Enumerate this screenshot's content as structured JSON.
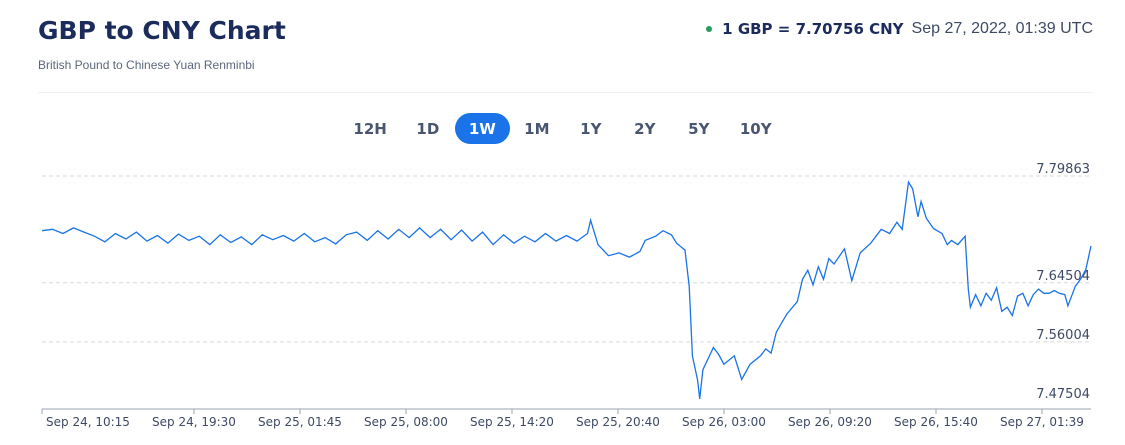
{
  "header": {
    "title": "GBP to CNY Chart",
    "subtitle": "British Pound to Chinese Yuan Renminbi",
    "rate": "1 GBP = 7.70756 CNY",
    "timestamp": "Sep 27, 2022, 01:39 UTC",
    "status_color": "#21a05a"
  },
  "tabs": [
    {
      "label": "12H",
      "active": false
    },
    {
      "label": "1D",
      "active": false
    },
    {
      "label": "1W",
      "active": true
    },
    {
      "label": "1M",
      "active": false
    },
    {
      "label": "1Y",
      "active": false
    },
    {
      "label": "2Y",
      "active": false
    },
    {
      "label": "5Y",
      "active": false
    },
    {
      "label": "10Y",
      "active": false
    }
  ],
  "chart_data": {
    "type": "line",
    "title": "",
    "xlabel": "",
    "ylabel": "",
    "line_color": "#1a73e8",
    "y_ticks": [
      7.79863,
      7.64504,
      7.56004,
      7.47504
    ],
    "ylim": [
      7.47504,
      7.79863
    ],
    "x_tick_labels": [
      "Sep 24, 10:15",
      "Sep 24, 19:30",
      "Sep 25, 01:45",
      "Sep 25, 08:00",
      "Sep 25, 14:20",
      "Sep 25, 20:40",
      "Sep 26, 03:00",
      "Sep 26, 09:20",
      "Sep 26, 15:40",
      "Sep 27, 01:39"
    ],
    "series": [
      {
        "points": [
          [
            0.0,
            7.72
          ],
          [
            0.01,
            7.722
          ],
          [
            0.02,
            7.716
          ],
          [
            0.03,
            7.724
          ],
          [
            0.04,
            7.718
          ],
          [
            0.05,
            7.712
          ],
          [
            0.06,
            7.704
          ],
          [
            0.07,
            7.716
          ],
          [
            0.08,
            7.708
          ],
          [
            0.09,
            7.718
          ],
          [
            0.1,
            7.705
          ],
          [
            0.11,
            7.713
          ],
          [
            0.12,
            7.702
          ],
          [
            0.13,
            7.715
          ],
          [
            0.14,
            7.706
          ],
          [
            0.15,
            7.712
          ],
          [
            0.16,
            7.7
          ],
          [
            0.17,
            7.714
          ],
          [
            0.18,
            7.703
          ],
          [
            0.19,
            7.711
          ],
          [
            0.2,
            7.7
          ],
          [
            0.21,
            7.714
          ],
          [
            0.22,
            7.707
          ],
          [
            0.23,
            7.713
          ],
          [
            0.24,
            7.705
          ],
          [
            0.25,
            7.716
          ],
          [
            0.26,
            7.704
          ],
          [
            0.27,
            7.71
          ],
          [
            0.28,
            7.701
          ],
          [
            0.29,
            7.714
          ],
          [
            0.3,
            7.718
          ],
          [
            0.31,
            7.706
          ],
          [
            0.32,
            7.72
          ],
          [
            0.33,
            7.708
          ],
          [
            0.34,
            7.722
          ],
          [
            0.35,
            7.71
          ],
          [
            0.36,
            7.724
          ],
          [
            0.37,
            7.71
          ],
          [
            0.38,
            7.722
          ],
          [
            0.39,
            7.707
          ],
          [
            0.4,
            7.721
          ],
          [
            0.41,
            7.705
          ],
          [
            0.42,
            7.718
          ],
          [
            0.43,
            7.7
          ],
          [
            0.44,
            7.714
          ],
          [
            0.45,
            7.702
          ],
          [
            0.46,
            7.712
          ],
          [
            0.47,
            7.704
          ],
          [
            0.48,
            7.716
          ],
          [
            0.49,
            7.705
          ],
          [
            0.5,
            7.713
          ],
          [
            0.51,
            7.705
          ],
          [
            0.52,
            7.716
          ],
          [
            0.523,
            7.735
          ],
          [
            0.53,
            7.7
          ],
          [
            0.54,
            7.684
          ],
          [
            0.55,
            7.688
          ],
          [
            0.56,
            7.682
          ],
          [
            0.57,
            7.69
          ],
          [
            0.575,
            7.706
          ],
          [
            0.585,
            7.712
          ],
          [
            0.592,
            7.72
          ],
          [
            0.6,
            7.714
          ],
          [
            0.605,
            7.702
          ],
          [
            0.613,
            7.692
          ],
          [
            0.617,
            7.64
          ],
          [
            0.62,
            7.54
          ],
          [
            0.625,
            7.505
          ],
          [
            0.627,
            7.478
          ],
          [
            0.63,
            7.52
          ],
          [
            0.64,
            7.552
          ],
          [
            0.645,
            7.542
          ],
          [
            0.65,
            7.528
          ],
          [
            0.66,
            7.54
          ],
          [
            0.667,
            7.506
          ],
          [
            0.675,
            7.528
          ],
          [
            0.685,
            7.54
          ],
          [
            0.69,
            7.55
          ],
          [
            0.695,
            7.544
          ],
          [
            0.7,
            7.574
          ],
          [
            0.705,
            7.587
          ],
          [
            0.71,
            7.6
          ],
          [
            0.72,
            7.618
          ],
          [
            0.725,
            7.65
          ],
          [
            0.73,
            7.663
          ],
          [
            0.735,
            7.642
          ],
          [
            0.74,
            7.668
          ],
          [
            0.745,
            7.65
          ],
          [
            0.75,
            7.68
          ],
          [
            0.755,
            7.672
          ],
          [
            0.765,
            7.694
          ],
          [
            0.772,
            7.648
          ],
          [
            0.78,
            7.688
          ],
          [
            0.79,
            7.702
          ],
          [
            0.8,
            7.722
          ],
          [
            0.808,
            7.716
          ],
          [
            0.815,
            7.732
          ],
          [
            0.82,
            7.722
          ],
          [
            0.826,
            7.79
          ],
          [
            0.83,
            7.78
          ],
          [
            0.835,
            7.74
          ],
          [
            0.838,
            7.762
          ],
          [
            0.843,
            7.738
          ],
          [
            0.85,
            7.723
          ],
          [
            0.858,
            7.716
          ],
          [
            0.863,
            7.7
          ],
          [
            0.867,
            7.706
          ],
          [
            0.873,
            7.7
          ],
          [
            0.88,
            7.712
          ],
          [
            0.883,
            7.636
          ],
          [
            0.885,
            7.61
          ],
          [
            0.89,
            7.628
          ],
          [
            0.895,
            7.612
          ],
          [
            0.9,
            7.63
          ],
          [
            0.905,
            7.62
          ],
          [
            0.91,
            7.638
          ],
          [
            0.915,
            7.604
          ],
          [
            0.92,
            7.61
          ],
          [
            0.925,
            7.598
          ],
          [
            0.93,
            7.626
          ],
          [
            0.935,
            7.63
          ],
          [
            0.94,
            7.612
          ],
          [
            0.945,
            7.628
          ],
          [
            0.95,
            7.636
          ],
          [
            0.955,
            7.63
          ],
          [
            0.96,
            7.63
          ],
          [
            0.965,
            7.634
          ],
          [
            0.97,
            7.63
          ],
          [
            0.975,
            7.628
          ],
          [
            0.978,
            7.612
          ],
          [
            0.985,
            7.64
          ],
          [
            0.99,
            7.65
          ],
          [
            0.995,
            7.664
          ],
          [
            1.0,
            7.698
          ]
        ]
      }
    ]
  }
}
